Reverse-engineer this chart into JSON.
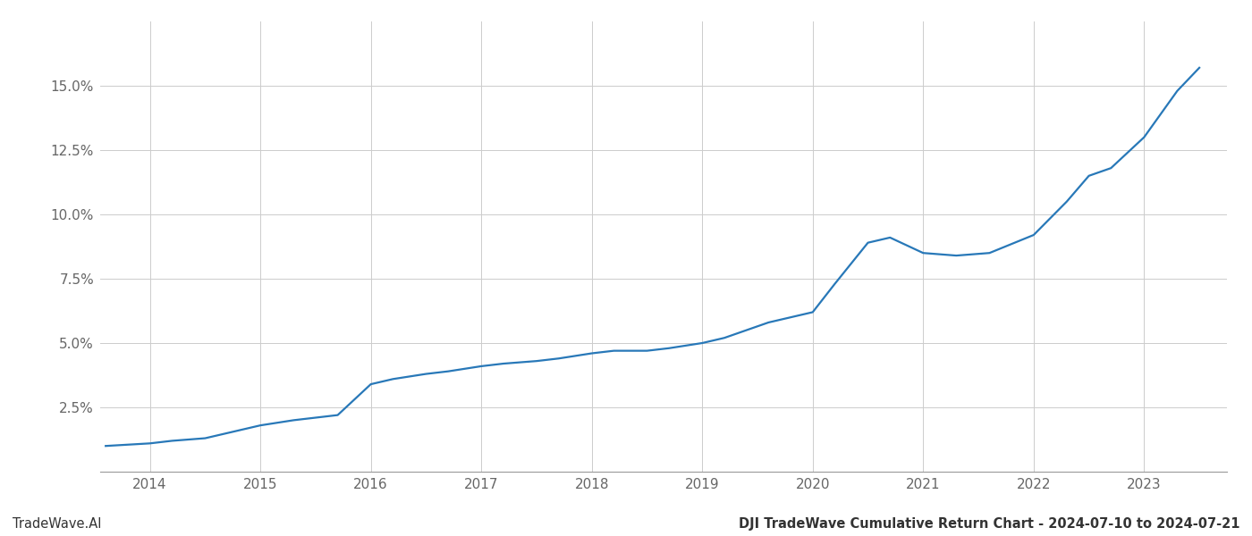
{
  "title": "DJI TradeWave Cumulative Return Chart - 2024-07-10 to 2024-07-21",
  "watermark": "TradeWave.AI",
  "line_color": "#2878b8",
  "background_color": "#ffffff",
  "grid_color": "#cccccc",
  "x_years": [
    2014,
    2015,
    2016,
    2017,
    2018,
    2019,
    2020,
    2021,
    2022,
    2023
  ],
  "x_values": [
    2013.6,
    2014.0,
    2014.2,
    2014.5,
    2015.0,
    2015.3,
    2015.7,
    2016.0,
    2016.2,
    2016.5,
    2016.7,
    2017.0,
    2017.2,
    2017.5,
    2017.7,
    2018.0,
    2018.2,
    2018.5,
    2018.7,
    2019.0,
    2019.2,
    2019.4,
    2019.6,
    2019.8,
    2020.0,
    2020.2,
    2020.5,
    2020.7,
    2021.0,
    2021.3,
    2021.6,
    2022.0,
    2022.3,
    2022.5,
    2022.7,
    2023.0,
    2023.3,
    2023.5
  ],
  "y_values": [
    0.01,
    0.011,
    0.012,
    0.013,
    0.018,
    0.02,
    0.022,
    0.034,
    0.036,
    0.038,
    0.039,
    0.041,
    0.042,
    0.043,
    0.044,
    0.046,
    0.047,
    0.047,
    0.048,
    0.05,
    0.052,
    0.055,
    0.058,
    0.06,
    0.062,
    0.073,
    0.089,
    0.091,
    0.085,
    0.084,
    0.085,
    0.092,
    0.105,
    0.115,
    0.118,
    0.13,
    0.148,
    0.157
  ],
  "ylim": [
    0,
    0.175
  ],
  "yticks": [
    0.025,
    0.05,
    0.075,
    0.1,
    0.125,
    0.15
  ],
  "xlim_left": 2013.55,
  "xlim_right": 2023.75,
  "title_fontsize": 10.5,
  "watermark_fontsize": 10.5,
  "tick_fontsize": 11,
  "line_width": 1.6,
  "spine_color": "#999999",
  "tick_color": "#666666"
}
